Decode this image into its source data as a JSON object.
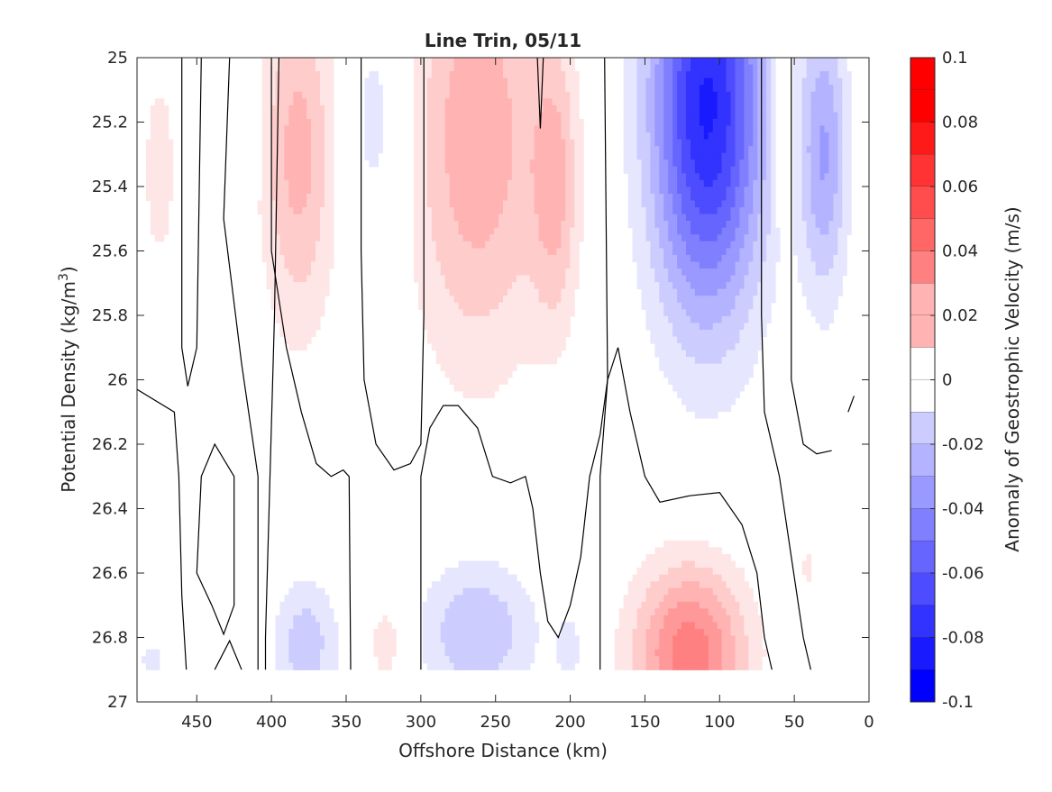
{
  "chart_data": {
    "type": "heatmap",
    "title": "Line Trin, 05/11",
    "xlabel": "Offshore Distance (km)",
    "ylabel": {
      "main": "Potential Density (kg/m",
      "sup": "3",
      "close": ")"
    },
    "xlim": [
      490,
      0
    ],
    "x_reversed": true,
    "ylim": [
      25,
      27
    ],
    "y_reversed": true,
    "x_ticks": [
      450,
      400,
      350,
      300,
      250,
      200,
      150,
      100,
      50,
      0
    ],
    "y_ticks": [
      25,
      25.2,
      25.4,
      25.6,
      25.8,
      26,
      26.2,
      26.4,
      26.6,
      26.8,
      27
    ],
    "y_tick_labels": [
      "25",
      "25.2",
      "25.4",
      "25.6",
      "25.8",
      "26",
      "26.2",
      "26.4",
      "26.6",
      "26.8",
      "27"
    ],
    "data_bottom": 26.9,
    "grid": false,
    "colorbar": {
      "label": "Anomaly of Geostrophic Velocity (m/s)",
      "range": [
        -0.1,
        0.1
      ],
      "ticks": [
        0.1,
        0.08,
        0.06,
        0.04,
        0.02,
        0,
        -0.02,
        -0.04,
        -0.06,
        -0.08,
        -0.1
      ],
      "tick_labels": [
        "0.1",
        "0.08",
        "0.06",
        "0.04",
        "0.02",
        "0",
        "-0.02",
        "-0.04",
        "-0.06",
        "-0.08",
        "-0.1"
      ],
      "level_step": 0.01,
      "colors": [
        "#ff0000",
        "#ff1a1a",
        "#ff3333",
        "#ff4d4d",
        "#ff6666",
        "#ff8080",
        "#ff9999",
        "#ffb3b3",
        "#ffcccc",
        "#ffe6e6",
        "#ffffff",
        "#ffffff",
        "#e6e6ff",
        "#ccccff",
        "#b3b3ff",
        "#9999ff",
        "#8080ff",
        "#6666ff",
        "#4d4dff",
        "#3333ff",
        "#1a1aff",
        "#0000ff"
      ]
    },
    "contour_zero_color": "#000000",
    "features": [
      {
        "kind": "pos",
        "x": 475,
        "y": 25.35,
        "sx": 14,
        "sy": 0.4,
        "amp": 0.014
      },
      {
        "kind": "neg",
        "x": 412,
        "y": 25.25,
        "sx": 4,
        "sy": 0.15,
        "amp": 0.014
      },
      {
        "kind": "pos",
        "x": 382,
        "y": 25.3,
        "sx": 25,
        "sy": 0.55,
        "amp": 0.034
      },
      {
        "kind": "neg",
        "x": 330,
        "y": 25.2,
        "sx": 22,
        "sy": 0.4,
        "amp": 0.016
      },
      {
        "kind": "pos",
        "x": 262,
        "y": 25.25,
        "sx": 45,
        "sy": 0.7,
        "amp": 0.038
      },
      {
        "kind": "pos",
        "x": 210,
        "y": 25.4,
        "sx": 16,
        "sy": 0.45,
        "amp": 0.028
      },
      {
        "kind": "neg",
        "x": 108,
        "y": 25.15,
        "sx": 38,
        "sy": 0.65,
        "amp": 0.092
      },
      {
        "kind": "pos",
        "x": 57,
        "y": 25.2,
        "sx": 6,
        "sy": 0.3,
        "amp": 0.028
      },
      {
        "kind": "neg",
        "x": 30,
        "y": 25.3,
        "sx": 16,
        "sy": 0.45,
        "amp": 0.04
      },
      {
        "kind": "pos",
        "x": 41,
        "y": 26.58,
        "sx": 5,
        "sy": 0.06,
        "amp": 0.014
      },
      {
        "kind": "neg",
        "x": 377,
        "y": 26.82,
        "sx": 22,
        "sy": 0.2,
        "amp": 0.026
      },
      {
        "kind": "pos",
        "x": 323,
        "y": 26.82,
        "sx": 14,
        "sy": 0.15,
        "amp": 0.016
      },
      {
        "kind": "neg",
        "x": 262,
        "y": 26.78,
        "sx": 38,
        "sy": 0.22,
        "amp": 0.03
      },
      {
        "kind": "neg",
        "x": 200,
        "y": 26.84,
        "sx": 10,
        "sy": 0.12,
        "amp": 0.014
      },
      {
        "kind": "pos",
        "x": 120,
        "y": 26.85,
        "sx": 38,
        "sy": 0.28,
        "amp": 0.056
      },
      {
        "kind": "neg",
        "x": 480,
        "y": 26.87,
        "sx": 10,
        "sy": 0.06,
        "amp": 0.014
      },
      {
        "kind": "neg",
        "x": 62,
        "y": 26.8,
        "sx": 2,
        "sy": 0.06,
        "amp": 0.012
      }
    ],
    "zero_contours": [
      [
        [
          490,
          26.03
        ],
        [
          465,
          26.1
        ],
        [
          462,
          26.3
        ],
        [
          460,
          26.67
        ],
        [
          457,
          26.9
        ]
      ],
      [
        [
          460,
          25
        ],
        [
          460,
          25.9
        ],
        [
          456,
          26.02
        ],
        [
          450,
          25.9
        ],
        [
          447,
          25
        ]
      ],
      [
        [
          450,
          26.6
        ],
        [
          447,
          26.3
        ],
        [
          438,
          26.2
        ],
        [
          425,
          26.3
        ],
        [
          425,
          26.7
        ],
        [
          432,
          26.79
        ],
        [
          440,
          26.7
        ],
        [
          450,
          26.6
        ]
      ],
      [
        [
          428,
          25
        ],
        [
          432,
          25.5
        ],
        [
          420,
          25.95
        ],
        [
          409,
          26.3
        ],
        [
          409,
          26.9
        ]
      ],
      [
        [
          438,
          26.9
        ],
        [
          428,
          26.81
        ],
        [
          420,
          26.9
        ]
      ],
      [
        [
          400,
          25
        ],
        [
          400,
          25.6
        ],
        [
          390,
          25.9
        ],
        [
          380,
          26.1
        ],
        [
          370,
          26.26
        ],
        [
          360,
          26.3
        ],
        [
          352,
          26.28
        ],
        [
          348,
          26.3
        ],
        [
          347,
          26.9
        ]
      ],
      [
        [
          404,
          26.9
        ],
        [
          404,
          26.8
        ],
        [
          401,
          26.3
        ],
        [
          398,
          25.8
        ],
        [
          395,
          25
        ]
      ],
      [
        [
          340,
          25
        ],
        [
          340,
          25.6
        ],
        [
          338,
          26.0
        ],
        [
          330,
          26.2
        ],
        [
          318,
          26.28
        ],
        [
          307,
          26.26
        ],
        [
          300,
          26.2
        ],
        [
          298,
          25.8
        ],
        [
          298,
          25
        ]
      ],
      [
        [
          300,
          26.9
        ],
        [
          300,
          26.3
        ],
        [
          294,
          26.15
        ],
        [
          285,
          26.08
        ],
        [
          275,
          26.08
        ],
        [
          262,
          26.15
        ],
        [
          252,
          26.3
        ],
        [
          240,
          26.32
        ],
        [
          230,
          26.3
        ],
        [
          225,
          26.4
        ],
        [
          220,
          26.6
        ],
        [
          215,
          26.75
        ],
        [
          208,
          26.8
        ],
        [
          200,
          26.7
        ],
        [
          193,
          26.55
        ],
        [
          187,
          26.3
        ],
        [
          180,
          26.17
        ],
        [
          175,
          26.0
        ],
        [
          177,
          25
        ],
        [
          177,
          25
        ]
      ],
      [
        [
          222,
          25
        ],
        [
          220,
          25.22
        ],
        [
          218,
          25
        ]
      ],
      [
        [
          180,
          26.9
        ],
        [
          180,
          26.3
        ],
        [
          175,
          26.0
        ],
        [
          168,
          25.9
        ],
        [
          160,
          26.1
        ],
        [
          150,
          26.3
        ],
        [
          140,
          26.38
        ],
        [
          120,
          26.36
        ],
        [
          100,
          26.35
        ],
        [
          85,
          26.45
        ],
        [
          75,
          26.6
        ],
        [
          70,
          26.8
        ],
        [
          65,
          26.9
        ]
      ],
      [
        [
          72,
          25
        ],
        [
          72,
          25.8
        ],
        [
          70,
          26.1
        ],
        [
          60,
          26.3
        ],
        [
          52,
          26.55
        ],
        [
          44,
          26.8
        ],
        [
          39,
          26.9
        ]
      ],
      [
        [
          52,
          25
        ],
        [
          52,
          26.0
        ],
        [
          44,
          26.2
        ],
        [
          35,
          26.23
        ],
        [
          25,
          26.22
        ]
      ],
      [
        [
          14,
          26.1
        ],
        [
          10,
          26.05
        ]
      ]
    ]
  }
}
